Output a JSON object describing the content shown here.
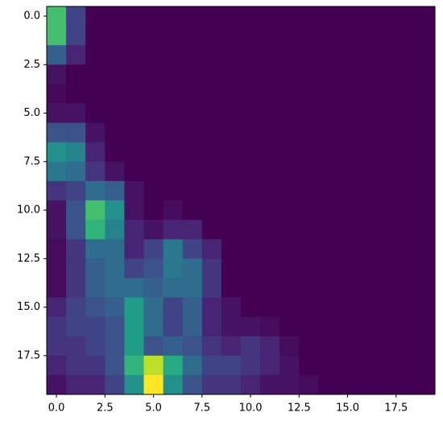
{
  "chart_data": {
    "type": "heatmap",
    "colormap": "viridis",
    "xlim": [
      -0.5,
      19.5
    ],
    "ylim": [
      19.5,
      -0.5
    ],
    "xticks": [
      {
        "value": 0,
        "label": "0.0"
      },
      2.5,
      {
        "value": 5,
        "label": "5.0"
      },
      7.5,
      {
        "value": 10,
        "label": "10.0"
      },
      12.5,
      {
        "value": 15,
        "label": "15.0"
      },
      17.5
    ],
    "yticks": [
      {
        "value": 0,
        "label": "0.0"
      },
      2.5,
      {
        "value": 5,
        "label": "5.0"
      },
      7.5,
      {
        "value": 10,
        "label": "10.0"
      },
      12.5,
      {
        "value": 15,
        "label": "15.0"
      },
      17.5
    ],
    "z": [
      [
        7,
        2,
        0,
        0,
        0,
        0,
        0,
        0,
        0,
        0,
        0,
        0,
        0,
        0,
        0,
        0,
        0,
        0,
        0,
        0
      ],
      [
        7,
        2,
        0,
        0,
        0,
        0,
        0,
        0,
        0,
        0,
        0,
        0,
        0,
        0,
        0,
        0,
        0,
        0,
        0,
        0
      ],
      [
        3,
        1,
        0,
        0,
        0,
        0,
        0,
        0,
        0,
        0,
        0,
        0,
        0,
        0,
        0,
        0,
        0,
        0,
        0,
        0
      ],
      [
        0.5,
        0,
        0,
        0,
        0,
        0,
        0,
        0,
        0,
        0,
        0,
        0,
        0,
        0,
        0,
        0,
        0,
        0,
        0,
        0
      ],
      [
        0.2,
        0,
        0,
        0,
        0,
        0,
        0,
        0,
        0,
        0,
        0,
        0,
        0,
        0,
        0,
        0,
        0,
        0,
        0,
        0
      ],
      [
        0.5,
        0.5,
        0,
        0,
        0,
        0,
        0,
        0,
        0,
        0,
        0,
        0,
        0,
        0,
        0,
        0,
        0,
        0,
        0,
        0
      ],
      [
        2.5,
        2.5,
        0.5,
        0,
        0,
        0,
        0,
        0,
        0,
        0,
        0,
        0,
        0,
        0,
        0,
        0,
        0,
        0,
        0,
        0
      ],
      [
        5,
        4.5,
        1,
        0,
        0,
        0,
        0,
        0,
        0,
        0,
        0,
        0,
        0,
        0,
        0,
        0,
        0,
        0,
        0,
        0
      ],
      [
        4,
        3.5,
        1.5,
        0.5,
        0,
        0,
        0,
        0,
        0,
        0,
        0,
        0,
        0,
        0,
        0,
        0,
        0,
        0,
        0,
        0
      ],
      [
        1.5,
        2,
        3.5,
        3,
        0.5,
        0,
        0,
        0,
        0,
        0,
        0,
        0,
        0,
        0,
        0,
        0,
        0,
        0,
        0,
        0
      ],
      [
        0.5,
        2.5,
        7,
        5,
        0.5,
        0,
        0.3,
        0,
        0,
        0,
        0,
        0,
        0,
        0,
        0,
        0,
        0,
        0,
        0,
        0
      ],
      [
        0.5,
        2.5,
        6.5,
        4.5,
        1,
        0.5,
        1,
        1,
        0,
        0,
        0,
        0,
        0,
        0,
        0,
        0,
        0,
        0,
        0,
        0
      ],
      [
        0.3,
        1.5,
        3.5,
        3.5,
        1,
        2,
        4,
        2,
        1,
        0,
        0,
        0,
        0,
        0,
        0,
        0,
        0,
        0,
        0,
        0
      ],
      [
        0.3,
        1.5,
        3,
        3.5,
        2,
        2.5,
        4,
        3.5,
        1.5,
        0,
        0,
        0,
        0,
        0,
        0,
        0,
        0,
        0,
        0,
        0
      ],
      [
        0.3,
        1.5,
        3,
        3.5,
        3.5,
        3,
        3.5,
        3.5,
        1.5,
        0,
        0,
        0,
        0,
        0,
        0,
        0,
        0,
        0,
        0,
        0
      ],
      [
        1,
        2,
        2.5,
        3,
        5.5,
        3.5,
        2,
        3,
        1,
        0.5,
        0,
        0,
        0,
        0,
        0,
        0,
        0,
        0,
        0,
        0
      ],
      [
        1.5,
        2,
        2,
        2.5,
        5.5,
        3.5,
        2,
        3,
        1,
        0.5,
        0.5,
        0.3,
        0,
        0,
        0,
        0,
        0,
        0,
        0,
        0
      ],
      [
        1.5,
        1.5,
        2,
        2.5,
        5.5,
        2.5,
        3,
        2.5,
        1.5,
        1,
        1.5,
        1,
        0.3,
        0,
        0,
        0,
        0,
        0,
        0,
        0
      ],
      [
        1,
        1.5,
        1.5,
        2.5,
        6.5,
        9,
        6,
        3.5,
        2,
        2,
        1.5,
        1,
        0.5,
        0,
        0,
        0,
        0,
        0,
        0,
        0
      ],
      [
        0.5,
        1,
        1,
        2,
        5,
        10,
        5,
        2.5,
        1.5,
        1.5,
        1,
        0.5,
        0.5,
        0.3,
        0,
        0,
        0,
        0,
        0,
        0
      ]
    ]
  }
}
